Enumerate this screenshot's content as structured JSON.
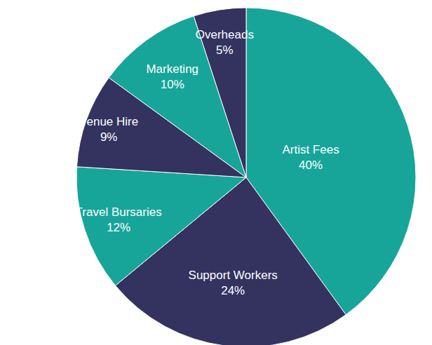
{
  "chart_data": {
    "type": "pie",
    "categories": [
      "Artist Fees",
      "Support Workers",
      "Travel Bursaries",
      "Venue Hire",
      "Marketing",
      "Overheads"
    ],
    "values": [
      40,
      24,
      12,
      9,
      10,
      5
    ],
    "value_labels": [
      "40%",
      "24%",
      "12%",
      "9%",
      "10%",
      "5%"
    ],
    "colors": [
      "#17a59a",
      "#34325f",
      "#17a59a",
      "#34325f",
      "#17a59a",
      "#34325f"
    ],
    "data_labels": true
  }
}
